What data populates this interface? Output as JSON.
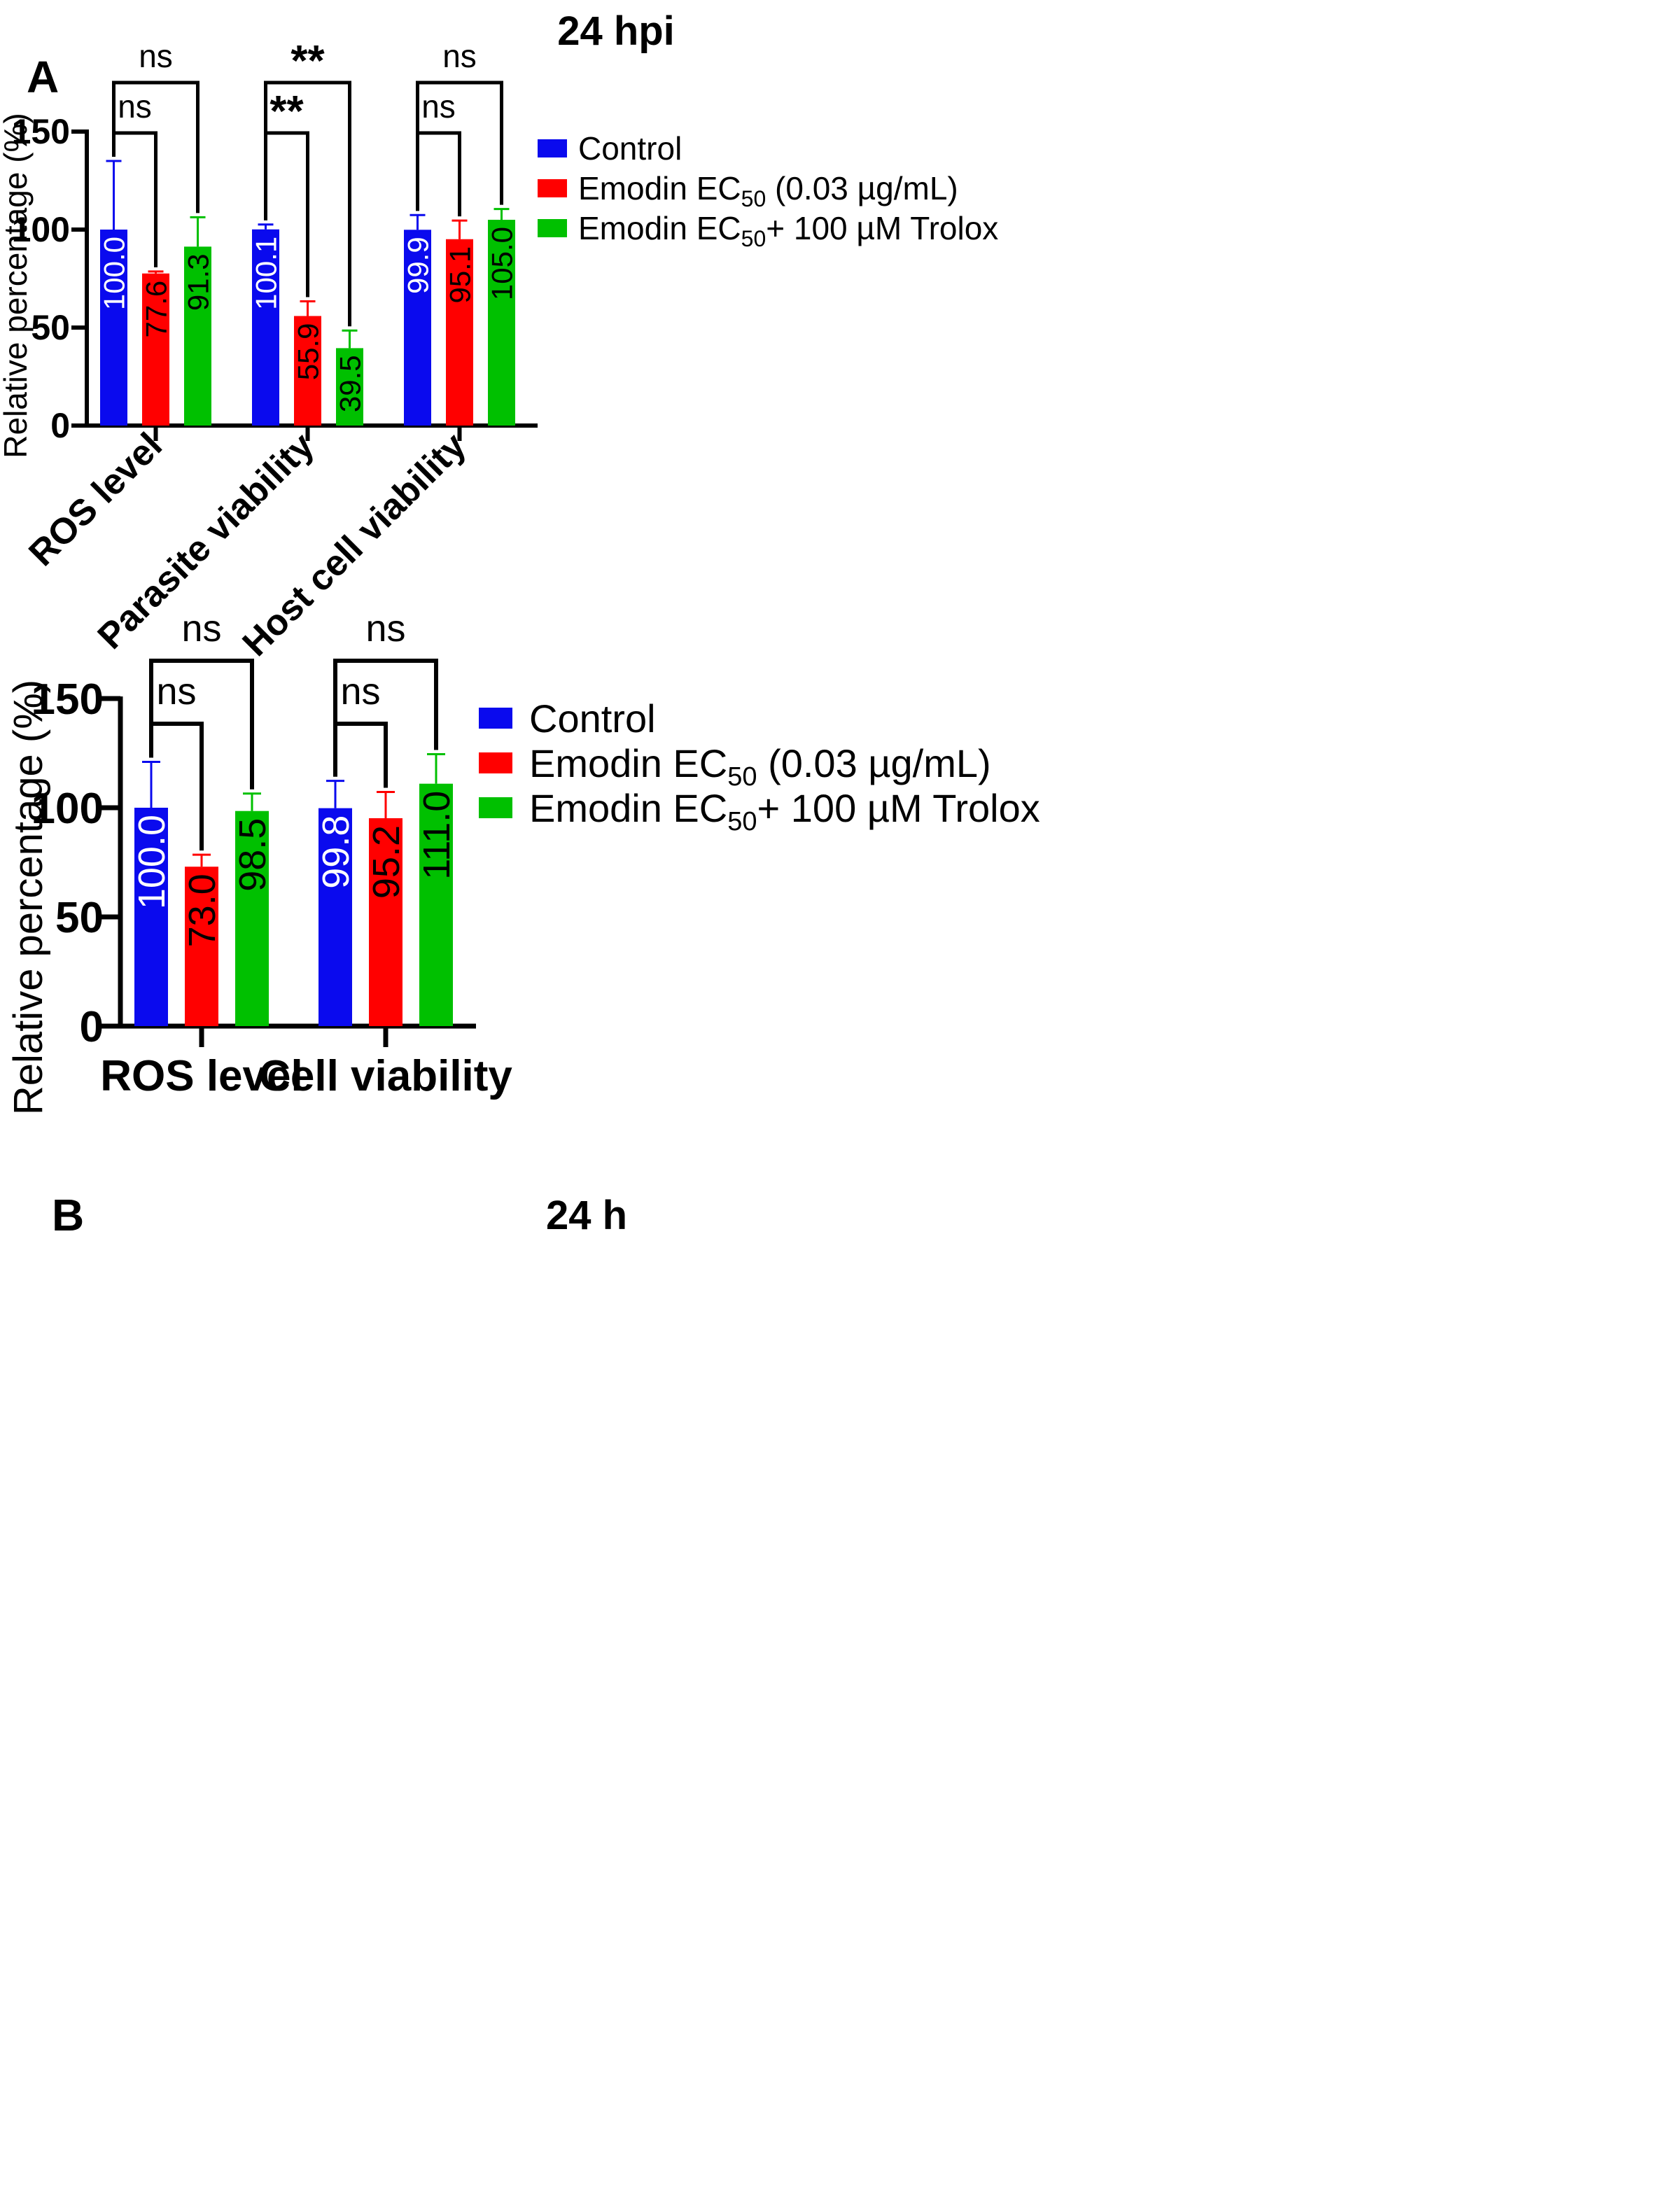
{
  "colors": {
    "control": "#0a0aee",
    "emodin": "#ff0000",
    "emodin_trolox": "#00c000",
    "axis": "#000000"
  },
  "chart_data": [
    {
      "panel": "A",
      "type": "bar",
      "title": "24 hpi",
      "ylabel": "Relative percentage (%)",
      "xlabel": "",
      "ylim": [
        0,
        150
      ],
      "yticks": [
        "0",
        "50",
        "100",
        "150"
      ],
      "categories": [
        "ROS level",
        "Parasite viability",
        "Host cell viability"
      ],
      "series": [
        {
          "name": "Control",
          "label_main": "Control",
          "label_sub": "",
          "label_tail": "",
          "color": "#0a0aee",
          "values": [
            100.0,
            100.1,
            99.9
          ],
          "errors": [
            35,
            2.5,
            7.5
          ],
          "labels": [
            "100.0",
            "100.1",
            "99.9"
          ]
        },
        {
          "name": "Emodin EC50 (0.03 µg/mL)",
          "label_main": "Emodin EC",
          "label_sub": "50",
          "label_tail": " (0.03 µg/mL)",
          "color": "#ff0000",
          "values": [
            77.6,
            55.9,
            95.1
          ],
          "errors": [
            1,
            7.5,
            9.5
          ],
          "labels": [
            "77.6",
            "55.9",
            "95.1"
          ]
        },
        {
          "name": "Emodin EC50+ 100 µM Trolox",
          "label_main": "Emodin EC",
          "label_sub": "50",
          "label_tail": "+ 100 µM Trolox",
          "color": "#00c000",
          "values": [
            91.3,
            39.5,
            105.0
          ],
          "errors": [
            15,
            9,
            5.5
          ],
          "labels": [
            "91.3",
            "39.5",
            "105.0"
          ]
        }
      ],
      "annotations": [
        {
          "category": 0,
          "from": 0,
          "to": 2,
          "level": "outer",
          "text": "ns"
        },
        {
          "category": 0,
          "from": 0,
          "to": 1,
          "level": "inner",
          "text": "ns"
        },
        {
          "category": 1,
          "from": 0,
          "to": 2,
          "level": "outer",
          "text": "**"
        },
        {
          "category": 1,
          "from": 0,
          "to": 1,
          "level": "inner",
          "text": "**"
        },
        {
          "category": 2,
          "from": 0,
          "to": 2,
          "level": "outer",
          "text": "ns"
        },
        {
          "category": 2,
          "from": 0,
          "to": 1,
          "level": "inner",
          "text": "ns"
        }
      ]
    },
    {
      "panel": "B",
      "type": "bar",
      "title": "24 h",
      "ylabel": "Relative percentage (%)",
      "xlabel": "",
      "ylim": [
        0,
        150
      ],
      "yticks": [
        "0",
        "50",
        "100",
        "150"
      ],
      "categories": [
        "ROS level",
        "Cell viability"
      ],
      "series": [
        {
          "name": "Control",
          "label_main": "Control",
          "label_sub": "",
          "label_tail": "",
          "color": "#0a0aee",
          "values": [
            100.0,
            99.8
          ],
          "errors": [
            21,
            12.5
          ],
          "labels": [
            "100.0",
            "99.8"
          ]
        },
        {
          "name": "Emodin EC50 (0.03 µg/mL)",
          "label_main": "Emodin EC",
          "label_sub": "50",
          "label_tail": " (0.03 µg/mL)",
          "color": "#ff0000",
          "values": [
            73.0,
            95.2
          ],
          "errors": [
            5.5,
            12
          ],
          "labels": [
            "73.0",
            "95.2"
          ]
        },
        {
          "name": "Emodin EC50+ 100 µM Trolox",
          "label_main": "Emodin EC",
          "label_sub": "50",
          "label_tail": "+ 100 µM Trolox",
          "color": "#00c000",
          "values": [
            98.5,
            111.0
          ],
          "errors": [
            8,
            13.5
          ],
          "labels": [
            "98.5",
            "111.0"
          ]
        }
      ],
      "annotations": [
        {
          "category": 0,
          "from": 0,
          "to": 2,
          "level": "outer",
          "text": "ns"
        },
        {
          "category": 0,
          "from": 0,
          "to": 1,
          "level": "inner",
          "text": "ns"
        },
        {
          "category": 1,
          "from": 0,
          "to": 2,
          "level": "outer",
          "text": "ns"
        },
        {
          "category": 1,
          "from": 0,
          "to": 1,
          "level": "inner",
          "text": "ns"
        }
      ]
    }
  ]
}
